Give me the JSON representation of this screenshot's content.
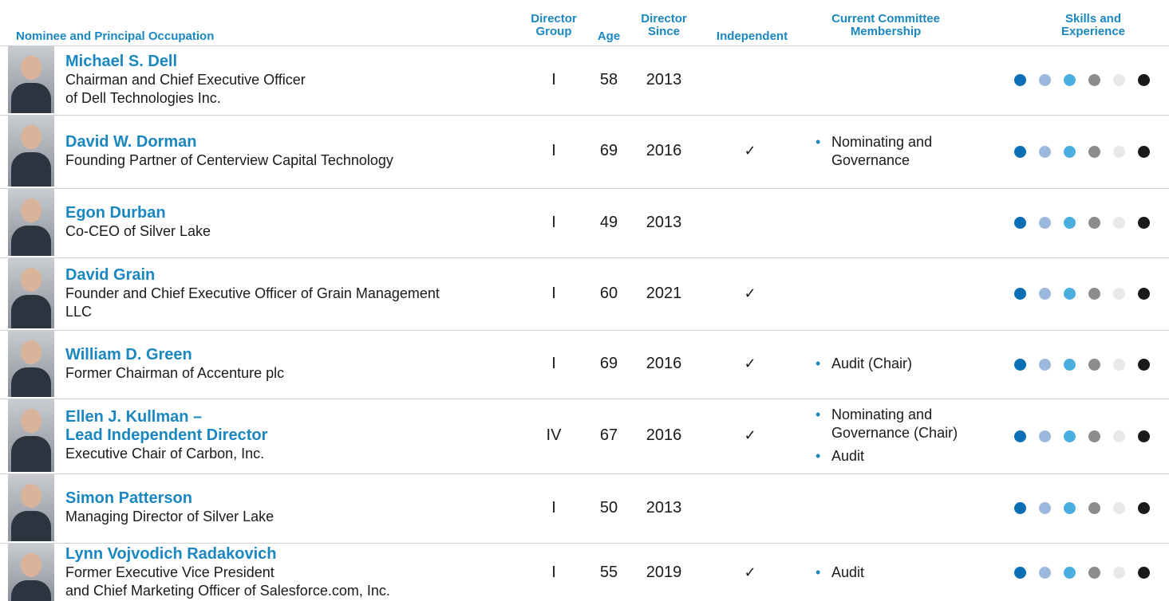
{
  "header": {
    "nominee": "Nominee and Principal Occupation",
    "group": [
      "Director",
      "Group"
    ],
    "age": "Age",
    "since": [
      "Director",
      "Since"
    ],
    "independent": "Independent",
    "committee": [
      "Current Committee",
      "Membership"
    ],
    "skills": [
      "Skills and",
      "Experience"
    ]
  },
  "rows": [
    {
      "name": [
        "Michael S. Dell"
      ],
      "occupation": [
        "Chairman and Chief Executive Officer",
        "of Dell Technologies Inc."
      ],
      "group": "I",
      "age": 58,
      "since": 2013
    },
    {
      "name": [
        "David W. Dorman"
      ],
      "occupation": [
        "Founding Partner of Centerview Capital Technology"
      ],
      "group": "I",
      "age": 69,
      "since": 2016,
      "independent": "✓",
      "committee": [
        "Nominating and Governance"
      ]
    },
    {
      "name": [
        "Egon Durban"
      ],
      "occupation": [
        "Co-CEO of Silver Lake"
      ],
      "group": "I",
      "age": 49,
      "since": 2013
    },
    {
      "name": [
        "David Grain"
      ],
      "occupation": [
        "Founder and Chief Executive Officer of Grain Management",
        "LLC"
      ],
      "group": "I",
      "age": 60,
      "since": 2021,
      "independent": "✓"
    },
    {
      "name": [
        "William D. Green"
      ],
      "occupation": [
        "Former Chairman of Accenture plc"
      ],
      "group": "I",
      "age": 69,
      "since": 2016,
      "independent": "✓",
      "committee": [
        "Audit (Chair)"
      ]
    },
    {
      "name": [
        "Ellen J. Kullman –",
        "Lead Independent Director"
      ],
      "occupation": [
        "Executive Chair of Carbon, Inc."
      ],
      "group": "IV",
      "age": 67,
      "since": 2016,
      "independent": "✓",
      "committee": [
        "Nominating and Governance (Chair)",
        "Audit"
      ]
    },
    {
      "name": [
        "Simon Patterson"
      ],
      "occupation": [
        "Managing Director of Silver Lake"
      ],
      "group": "I",
      "age": 50,
      "since": 2013
    },
    {
      "name": [
        "Lynn Vojvodich Radakovich"
      ],
      "occupation": [
        "Former Executive Vice President",
        "and Chief Marketing Officer of Salesforce.com, Inc."
      ],
      "group": "I",
      "age": 55,
      "since": 2019,
      "independent": "✓",
      "committee": [
        "Audit"
      ]
    }
  ]
}
